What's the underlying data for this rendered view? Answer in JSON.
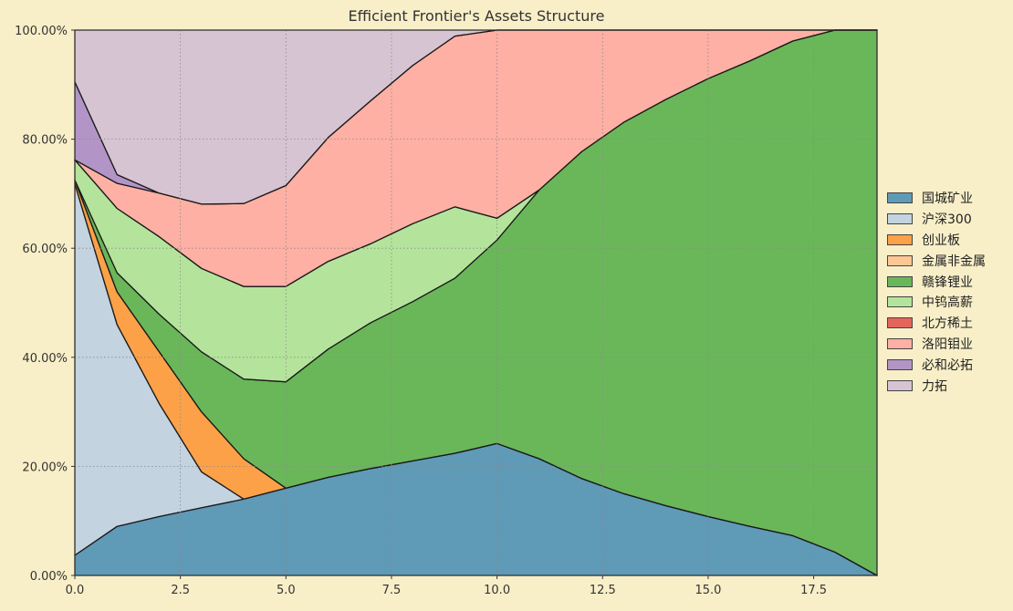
{
  "chart_data": {
    "type": "area",
    "stacked": true,
    "title": "Efficient Frontier's Assets Structure",
    "xlabel": "",
    "ylabel": "",
    "xlim": [
      0,
      19
    ],
    "ylim": [
      0,
      100
    ],
    "xticks": [
      "0.0",
      "2.5",
      "5.0",
      "7.5",
      "10.0",
      "12.5",
      "15.0",
      "17.5"
    ],
    "yticks": [
      "0.00%",
      "20.00%",
      "40.00%",
      "60.00%",
      "80.00%",
      "100.00%"
    ],
    "grid": true,
    "legend_position": "right",
    "x": [
      0,
      1,
      2,
      3,
      4,
      5,
      6,
      7,
      8,
      9,
      10,
      11,
      12,
      13,
      14,
      15,
      16,
      17,
      18,
      19
    ],
    "series": [
      {
        "name": "国城矿业",
        "color": "#5f9ab7",
        "values": [
          3.7,
          9.0,
          10.8,
          12.4,
          14.0,
          16.0,
          18.0,
          19.6,
          21.0,
          22.4,
          24.2,
          21.4,
          17.8,
          15.0,
          12.8,
          10.8,
          9.0,
          7.3,
          4.3,
          0.0
        ]
      },
      {
        "name": "沪深300",
        "color": "#c3d3df",
        "values": [
          68.1,
          37.0,
          20.7,
          6.6,
          0.0,
          0.0,
          0.0,
          0.0,
          0.0,
          0.0,
          0.0,
          0.0,
          0.0,
          0.0,
          0.0,
          0.0,
          0.0,
          0.0,
          0.0,
          0.0
        ]
      },
      {
        "name": "创业板",
        "color": "#fca147",
        "values": [
          0.7,
          6.0,
          9.5,
          11.0,
          7.4,
          0.0,
          0.0,
          0.0,
          0.0,
          0.0,
          0.0,
          0.0,
          0.0,
          0.0,
          0.0,
          0.0,
          0.0,
          0.0,
          0.0,
          0.0
        ]
      },
      {
        "name": "金属非金属",
        "color": "#fcc794",
        "values": [
          0,
          0,
          0,
          0,
          0,
          0,
          0,
          0,
          0,
          0,
          0,
          0,
          0,
          0,
          0,
          0,
          0,
          0,
          0,
          0
        ]
      },
      {
        "name": "赣锋锂业",
        "color": "#6ab759",
        "values": [
          0.0,
          3.5,
          6.9,
          11.0,
          14.6,
          19.5,
          23.5,
          26.7,
          29.2,
          32.1,
          37.3,
          49.3,
          59.9,
          68.1,
          74.5,
          80.3,
          85.4,
          90.7,
          95.7,
          100.0
        ]
      },
      {
        "name": "中钨高薪",
        "color": "#b4e49b",
        "values": [
          3.7,
          11.8,
          14.2,
          15.3,
          17.0,
          17.5,
          16.1,
          14.5,
          14.3,
          13.1,
          4.0,
          0.0,
          0.0,
          0.0,
          0.0,
          0.0,
          0.0,
          0.0,
          0.0,
          0.0
        ]
      },
      {
        "name": "北方稀土",
        "color": "#e4655c",
        "values": [
          0,
          0,
          0,
          0,
          0,
          0,
          0,
          0,
          0,
          0,
          0,
          0,
          0,
          0,
          0,
          0,
          0,
          0,
          0,
          0
        ]
      },
      {
        "name": "洛阳钼业",
        "color": "#feb0a4",
        "values": [
          0.0,
          4.6,
          8.0,
          11.8,
          15.2,
          18.5,
          22.7,
          26.2,
          29.0,
          31.3,
          34.5,
          29.3,
          22.3,
          16.9,
          12.7,
          8.9,
          5.6,
          2.0,
          0.0,
          0.0
        ]
      },
      {
        "name": "必和必拓",
        "color": "#b295c6",
        "values": [
          14.3,
          1.6,
          0.0,
          0.0,
          0.0,
          0.0,
          0.0,
          0.0,
          0.0,
          0.0,
          0.0,
          0.0,
          0.0,
          0.0,
          0.0,
          0.0,
          0.0,
          0.0,
          0.0,
          0.0
        ]
      },
      {
        "name": "力拓",
        "color": "#d7c4d2",
        "values": [
          9.5,
          26.5,
          29.9,
          31.9,
          31.8,
          28.5,
          19.7,
          13.0,
          6.5,
          1.1,
          0.0,
          0.0,
          0.0,
          0.0,
          0.0,
          0.0,
          0.0,
          0.0,
          0.0,
          0.0
        ]
      }
    ]
  }
}
